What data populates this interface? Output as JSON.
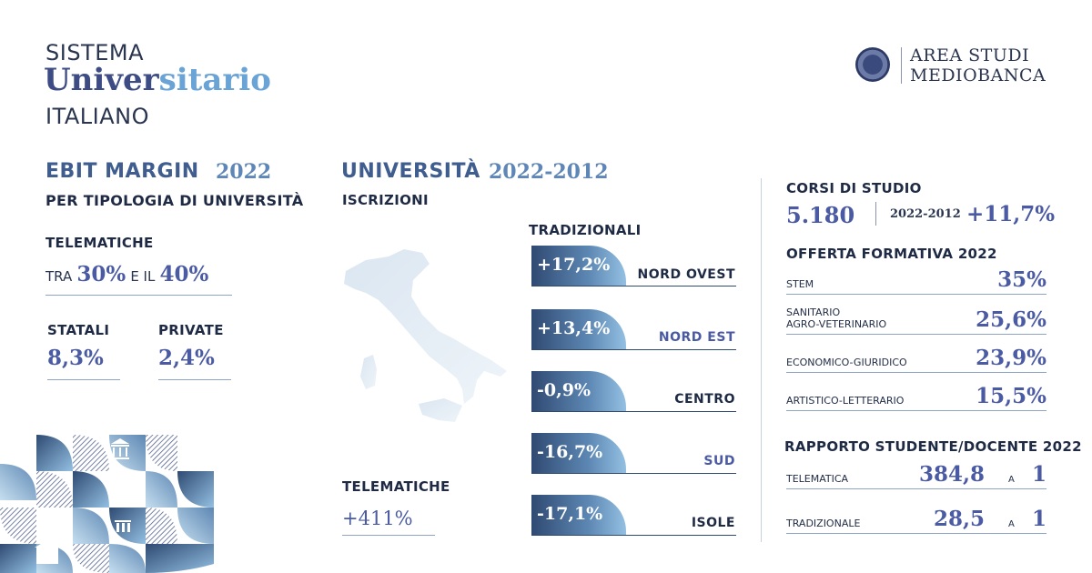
{
  "header": {
    "title_line1": "SISTEMA",
    "title_line2_a": "Univer",
    "title_line2_b": "sitario",
    "title_line3": "ITALIANO",
    "brand_line1": "AREA STUDI",
    "brand_line2": "MEDIOBANCA"
  },
  "ebit": {
    "title": "EBIT MARGIN",
    "year": "2022",
    "subtitle": "PER TIPOLOGIA DI UNIVERSITÀ",
    "telematiche_label": "TELEMATICHE",
    "tra": "TRA",
    "low": "30%",
    "eil": "E IL",
    "high": "40%",
    "statali_label": "STATALI",
    "statali_value": "8,3%",
    "private_label": "PRIVATE",
    "private_value": "2,4%"
  },
  "universita": {
    "title": "UNIVERSITÀ",
    "period": "2022-2012",
    "iscrizioni": "ISCRIZIONI",
    "tradizionali": "TRADIZIONALI",
    "regions": [
      {
        "value": "+17,2%",
        "name": "NORD OVEST"
      },
      {
        "value": "+13,4%",
        "name": "NORD EST"
      },
      {
        "value": "-0,9%",
        "name": "CENTRO"
      },
      {
        "value": "-16,7%",
        "name": "SUD"
      },
      {
        "value": "-17,1%",
        "name": "ISOLE"
      }
    ],
    "telematiche_label": "TELEMATICHE",
    "telematiche_value": "+411%"
  },
  "corsi": {
    "title": "CORSI DI STUDIO",
    "value": "5.180",
    "period": "2022-2012",
    "change": "+11,7%"
  },
  "offerta": {
    "title": "OFFERTA FORMATIVA 2022",
    "rows": [
      {
        "label": "STEM",
        "value": "35%"
      },
      {
        "label": "SANITARIO\nAGRO-VETERINARIO",
        "value": "25,6%"
      },
      {
        "label": "ECONOMICO-GIURIDICO",
        "value": "23,9%"
      },
      {
        "label": "ARTISTICO-LETTERARIO",
        "value": "15,5%"
      }
    ]
  },
  "rapporto": {
    "title": "RAPPORTO STUDENTE/DOCENTE 2022",
    "rows": [
      {
        "label": "TELEMATICA",
        "value": "384,8",
        "a": "A",
        "one": "1"
      },
      {
        "label": "TRADIZIONALE",
        "value": "28,5",
        "a": "A",
        "one": "1"
      }
    ]
  },
  "colors": {
    "navy": "#2d3a5c",
    "accent": "#4a5aa3",
    "light_blue": "#8fb6db"
  }
}
